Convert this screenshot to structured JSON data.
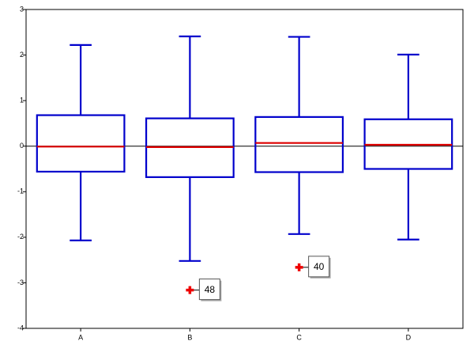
{
  "chart_data": {
    "type": "box",
    "categories": [
      "A",
      "B",
      "C",
      "D"
    ],
    "boxes": [
      {
        "whisker_low": -2.07,
        "q1": -0.56,
        "median": -0.01,
        "q3": 0.68,
        "whisker_high": 2.22,
        "outliers": []
      },
      {
        "whisker_low": -2.52,
        "q1": -0.68,
        "median": -0.02,
        "q3": 0.61,
        "whisker_high": 2.41,
        "outliers": [
          {
            "value": -3.16,
            "label": "48"
          }
        ]
      },
      {
        "whisker_low": -1.93,
        "q1": -0.57,
        "median": 0.07,
        "q3": 0.64,
        "whisker_high": 2.4,
        "outliers": [
          {
            "value": -2.66,
            "label": "40"
          }
        ]
      },
      {
        "whisker_low": -2.05,
        "q1": -0.5,
        "median": 0.03,
        "q3": 0.59,
        "whisker_high": 2.01,
        "outliers": []
      }
    ],
    "box_color": "#0000cc",
    "median_color": "#dd0000",
    "outlier_color": "#ee0000",
    "zero_line": true,
    "ylim": [
      -4,
      3
    ],
    "yticks": [
      -4,
      -3,
      -2,
      -1,
      0,
      1,
      2,
      3
    ]
  }
}
